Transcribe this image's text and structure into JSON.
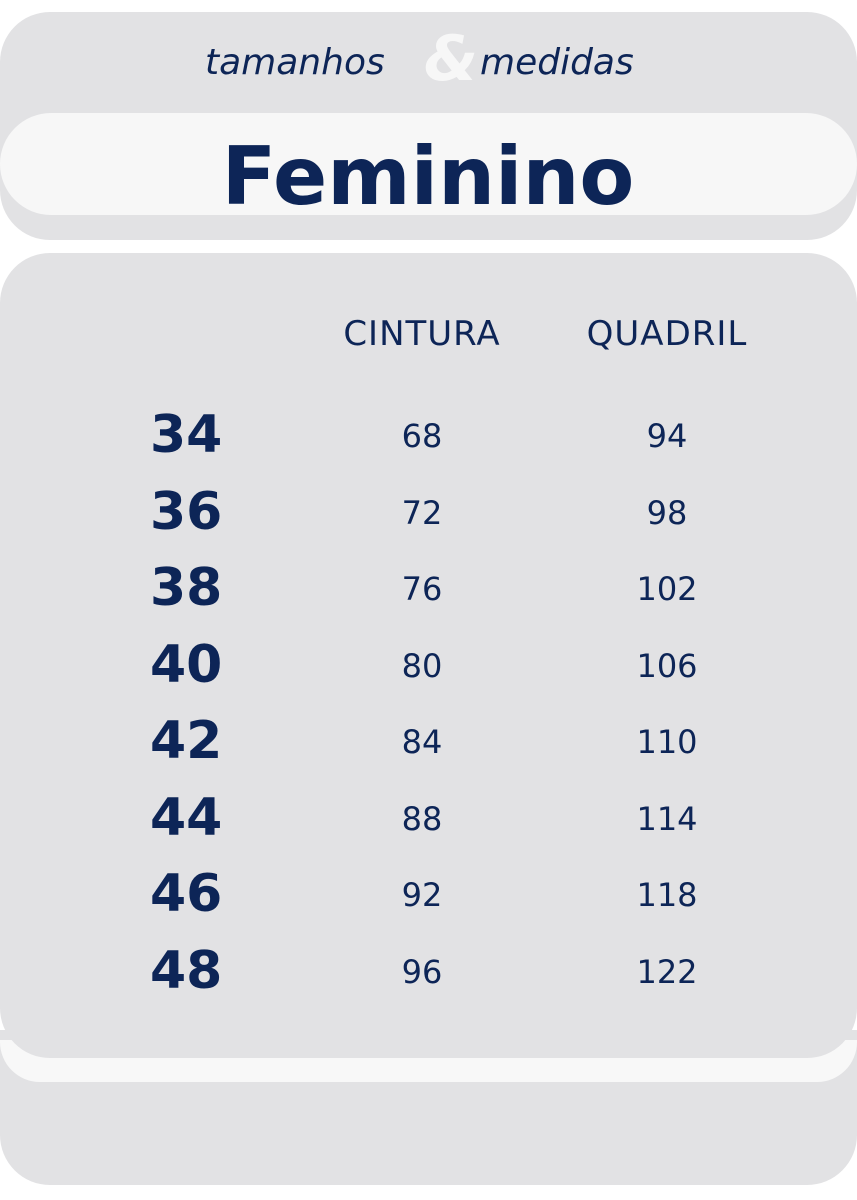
{
  "header": {
    "left": "tamanhos",
    "ampersand": "&",
    "right": "medidas"
  },
  "title": "Feminino",
  "table": {
    "columns": [
      "CINTURA",
      "QUADRIL"
    ],
    "rows": [
      [
        34,
        68,
        94
      ],
      [
        36,
        72,
        98
      ],
      [
        38,
        76,
        102
      ],
      [
        40,
        80,
        106
      ],
      [
        42,
        84,
        110
      ],
      [
        44,
        88,
        114
      ],
      [
        46,
        92,
        118
      ],
      [
        48,
        96,
        122
      ]
    ]
  }
}
